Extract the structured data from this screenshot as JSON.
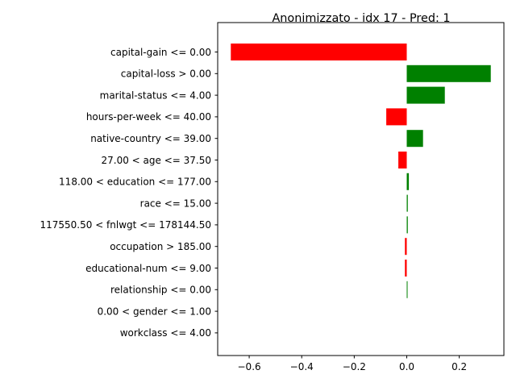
{
  "chart_data": {
    "type": "bar",
    "orientation": "horizontal",
    "title": "Anonimizzato - idx 17 - Pred: 1",
    "xlabel": "",
    "ylabel": "",
    "categories": [
      "capital-gain <= 0.00",
      "capital-loss > 0.00",
      "marital-status <= 4.00",
      "hours-per-week <= 40.00",
      "native-country <= 39.00",
      "27.00 < age <= 37.50",
      "118.00 < education <= 177.00",
      "race <= 15.00",
      "117550.50 < fnlwgt <= 178144.50",
      "occupation > 185.00",
      "educational-num <= 9.00",
      "relationship <= 0.00",
      "0.00 < gender <= 1.00",
      "workclass <= 4.00"
    ],
    "values": [
      -0.67,
      0.32,
      0.145,
      -0.078,
      0.062,
      -0.032,
      0.008,
      0.004,
      0.004,
      -0.007,
      -0.007,
      0.003,
      0.0,
      0.0
    ],
    "x_ticks": [
      -0.6,
      -0.4,
      -0.2,
      0.0,
      0.2
    ],
    "x_tick_labels": [
      "−0.6",
      "−0.4",
      "−0.2",
      "0.0",
      "0.2"
    ],
    "xlim": [
      -0.72,
      0.37
    ],
    "positive_color": "#008000",
    "negative_color": "#ff0000",
    "grid": false,
    "legend": "none"
  }
}
